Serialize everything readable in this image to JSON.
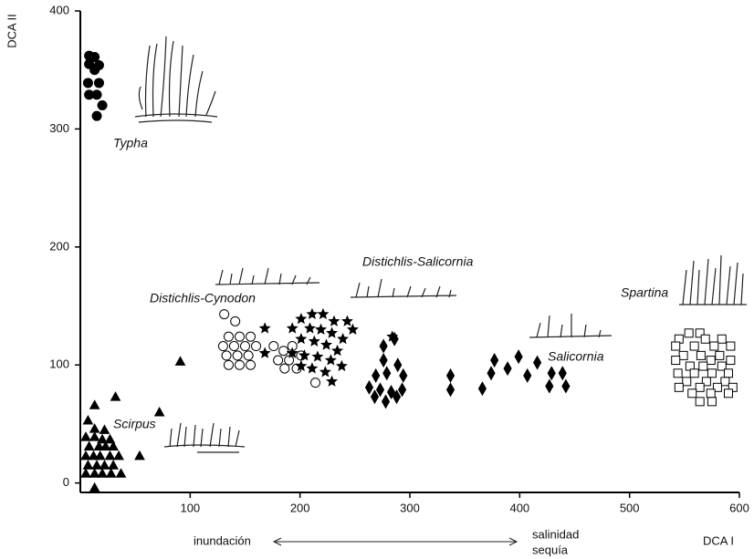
{
  "chart_data": {
    "type": "scatter",
    "x_label": "DCA I",
    "y_label": "DCA II",
    "xlim": [
      0,
      600
    ],
    "ylim": [
      -8,
      400
    ],
    "xticks": [
      100,
      200,
      300,
      400,
      500,
      600
    ],
    "yticks": [
      0,
      100,
      200,
      300,
      400
    ],
    "annotations": [
      "inundación",
      "salinidad",
      "sequía"
    ],
    "series": [
      {
        "name": "Typha",
        "marker": "circle",
        "color": "#000",
        "fill": "#000",
        "x": [
          8,
          13,
          17,
          8,
          13,
          7,
          17,
          15,
          8,
          20,
          15
        ],
        "y": [
          362,
          361,
          354,
          355,
          350,
          339,
          339,
          329,
          329,
          320,
          311
        ]
      },
      {
        "name": "Scirpus",
        "marker": "triangle",
        "color": "#000",
        "fill": "#000",
        "x": [
          13,
          32,
          7,
          13,
          22,
          5,
          13,
          20,
          27,
          8,
          17,
          23,
          30,
          5,
          12,
          18,
          27,
          35,
          7,
          15,
          22,
          30,
          5,
          13,
          20,
          28,
          37,
          13,
          72,
          54,
          91
        ],
        "y": [
          66,
          73,
          53,
          46,
          45,
          39,
          39,
          37,
          37,
          31,
          31,
          31,
          31,
          23,
          23,
          23,
          23,
          23,
          15,
          15,
          15,
          15,
          8,
          8,
          8,
          8,
          8,
          -4,
          60,
          23,
          103
        ]
      },
      {
        "name": "Distichlis-Cynodon",
        "marker": "circle",
        "color": "#000",
        "fill": "#fff",
        "x": [
          131,
          141,
          135,
          145,
          155,
          130,
          140,
          150,
          160,
          133,
          143,
          153,
          135,
          145,
          155,
          176,
          185,
          193,
          180,
          190,
          201,
          186,
          197,
          214
        ],
        "y": [
          143,
          137,
          124,
          124,
          124,
          116,
          116,
          116,
          116,
          108,
          108,
          108,
          100,
          100,
          100,
          116,
          112,
          116,
          104,
          104,
          108,
          97,
          97,
          85
        ]
      },
      {
        "name": "Distichlis-Salicornia",
        "marker": "star",
        "color": "#000",
        "fill": "#000",
        "x": [
          168,
          168,
          193,
          201,
          211,
          221,
          231,
          243,
          248,
          209,
          219,
          229,
          239,
          201,
          213,
          224,
          234,
          193,
          204,
          216,
          228,
          238,
          201,
          211,
          223,
          229,
          284
        ],
        "y": [
          131,
          110,
          131,
          139,
          143,
          143,
          137,
          137,
          130,
          131,
          130,
          127,
          122,
          122,
          120,
          117,
          112,
          110,
          108,
          107,
          104,
          99,
          99,
          97,
          94,
          86,
          124
        ]
      },
      {
        "name": "Salicornia",
        "marker": "diamond",
        "color": "#000",
        "fill": "#000",
        "x": [
          276,
          286,
          276,
          289,
          269,
          279,
          294,
          263,
          273,
          283,
          293,
          268,
          278,
          288,
          337,
          337,
          366,
          374,
          377,
          389,
          399,
          407,
          416,
          427,
          429,
          439,
          442
        ],
        "y": [
          116,
          122,
          104,
          100,
          91,
          93,
          91,
          81,
          79,
          77,
          79,
          73,
          69,
          73,
          91,
          79,
          80,
          93,
          104,
          97,
          107,
          91,
          102,
          82,
          93,
          93,
          82
        ]
      },
      {
        "name": "Spartina",
        "marker": "square",
        "color": "#000",
        "fill": "#fff",
        "x": [
          554,
          564,
          545,
          569,
          584,
          542,
          559,
          577,
          592,
          549,
          565,
          582,
          542,
          574,
          592,
          555,
          567,
          584,
          544,
          559,
          575,
          590,
          552,
          570,
          587,
          545,
          564,
          580,
          594,
          557,
          574,
          590,
          564,
          575
        ],
        "y": [
          127,
          127,
          122,
          122,
          122,
          116,
          116,
          116,
          116,
          108,
          108,
          108,
          104,
          104,
          104,
          99,
          99,
          99,
          93,
          93,
          93,
          93,
          86,
          86,
          86,
          81,
          81,
          81,
          81,
          76,
          76,
          76,
          69,
          69
        ]
      }
    ]
  }
}
